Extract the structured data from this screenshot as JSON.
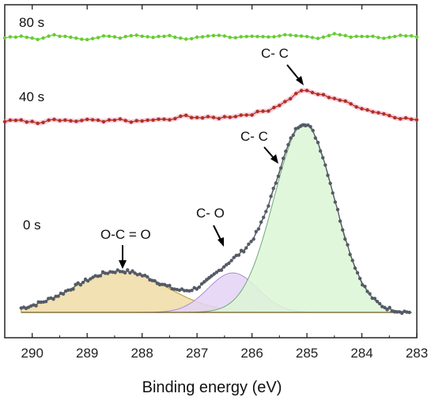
{
  "chart_data": {
    "type": "line",
    "title": "",
    "xlabel": "Binding energy (eV)",
    "ylabel": "",
    "xlim": [
      290.5,
      283
    ],
    "x_reversed": true,
    "x_ticks": [
      290,
      289,
      288,
      287,
      286,
      285,
      284,
      283
    ],
    "grid": false,
    "colors": {
      "s80": "#66cc33",
      "s40": "#b0301e",
      "s40_glow": "#f3b3d0",
      "data0": "#555a66",
      "envelope": "#6a7f74",
      "oco_fill": "#f0dca4",
      "oco_line": "#b89a2a",
      "co_fill": "#e4d4f4",
      "co_line": "#a98bd9",
      "cc_fill": "#dcf6d6",
      "cc_line": "#6fa77a",
      "baseline": "#6b5a1a"
    },
    "series": [
      {
        "name": "80 s",
        "x": [
          290.5,
          290.2,
          289.9,
          289.6,
          289.3,
          289.0,
          288.7,
          288.4,
          288.1,
          287.8,
          287.5,
          287.2,
          286.9,
          286.6,
          286.3,
          286.0,
          285.7,
          285.4,
          285.1,
          284.8,
          284.5,
          284.2,
          283.9,
          283.6,
          283.3,
          283.0
        ],
        "y": [
          0.0,
          0.2,
          -0.1,
          0.3,
          0.1,
          -0.2,
          0.2,
          0.0,
          0.3,
          0.1,
          0.2,
          -0.1,
          0.1,
          0.3,
          0.0,
          0.2,
          0.1,
          0.3,
          0.2,
          0.0,
          0.4,
          0.1,
          0.2,
          0.0,
          0.3,
          0.1
        ]
      },
      {
        "name": "40 s",
        "x": [
          290.5,
          290.2,
          289.9,
          289.6,
          289.3,
          289.0,
          288.7,
          288.4,
          288.1,
          287.8,
          287.5,
          287.2,
          286.9,
          286.6,
          286.3,
          286.0,
          285.7,
          285.4,
          285.1,
          284.8,
          284.5,
          284.2,
          283.9,
          283.6,
          283.3,
          283.0
        ],
        "y": [
          0.0,
          0.1,
          -0.1,
          0.1,
          0.0,
          0.1,
          0.0,
          0.1,
          0.0,
          0.1,
          0.1,
          0.3,
          0.2,
          0.2,
          0.3,
          0.4,
          0.6,
          1.0,
          1.6,
          1.4,
          1.2,
          0.9,
          0.6,
          0.4,
          0.2,
          0.1
        ]
      },
      {
        "name": "0 s",
        "components": [
          {
            "label": "O-C = O",
            "center": 288.4,
            "height": 0.22,
            "sigma": 0.85
          },
          {
            "label": "C- O",
            "center": 286.35,
            "height": 0.21,
            "sigma": 0.45
          },
          {
            "label": "C- C",
            "center": 285.05,
            "height": 1.0,
            "sigma": 0.55
          }
        ]
      }
    ],
    "annotations": [
      {
        "text": "80 s"
      },
      {
        "text": "40 s"
      },
      {
        "text": "0 s"
      },
      {
        "text": "C- C",
        "target": "40 s peak"
      },
      {
        "text": "C- C",
        "target": "0 s C-C component"
      },
      {
        "text": "C- O",
        "target": "0 s C-O component"
      },
      {
        "text": "O-C = O",
        "target": "0 s O-C=O component"
      }
    ]
  }
}
